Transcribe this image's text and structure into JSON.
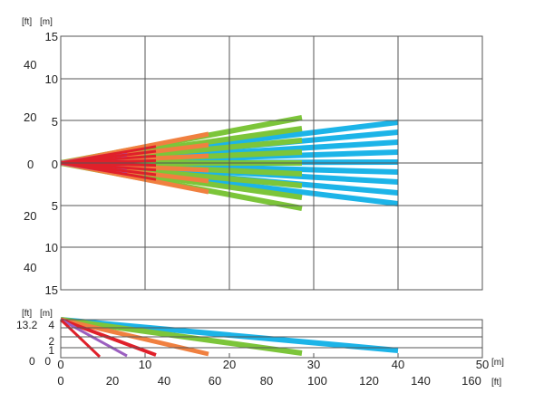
{
  "top_view": {
    "unit_ft": "[ft]",
    "unit_m": "[m]",
    "y_ticks_m": [
      "15",
      "10",
      "5",
      "0",
      "5",
      "10",
      "15"
    ],
    "y_ticks_ft": [
      "40",
      "20",
      "0",
      "20",
      "40"
    ]
  },
  "side_view": {
    "unit_ft": "[ft]",
    "unit_m": "[m]",
    "y_ticks_m": [
      "4",
      "2",
      "1",
      "0"
    ],
    "y_tick_ft_top": "13.2",
    "y_tick_ft_bottom": "0"
  },
  "x_axis": {
    "unit_m": "[m]",
    "unit_ft": "[ft]",
    "ticks_m": [
      "0",
      "10",
      "20",
      "30",
      "40",
      "50"
    ],
    "ticks_ft": [
      "0",
      "20",
      "40",
      "60",
      "80",
      "100",
      "120",
      "140",
      "160"
    ]
  },
  "colors": {
    "red": "#e0202a",
    "purple": "#9b5fc0",
    "orange": "#f08040",
    "green": "#7cc53a",
    "cyan": "#1cb4e8",
    "grid": "#555555"
  },
  "chart_data": {
    "type": "diagram",
    "description_zones": [
      {
        "color": "red",
        "range_m": 10
      },
      {
        "color": "purple",
        "range_m": 12
      },
      {
        "color": "orange",
        "range_m": 18
      },
      {
        "color": "green",
        "range_m": 29
      },
      {
        "color": "cyan",
        "range_m": 40
      }
    ]
  }
}
